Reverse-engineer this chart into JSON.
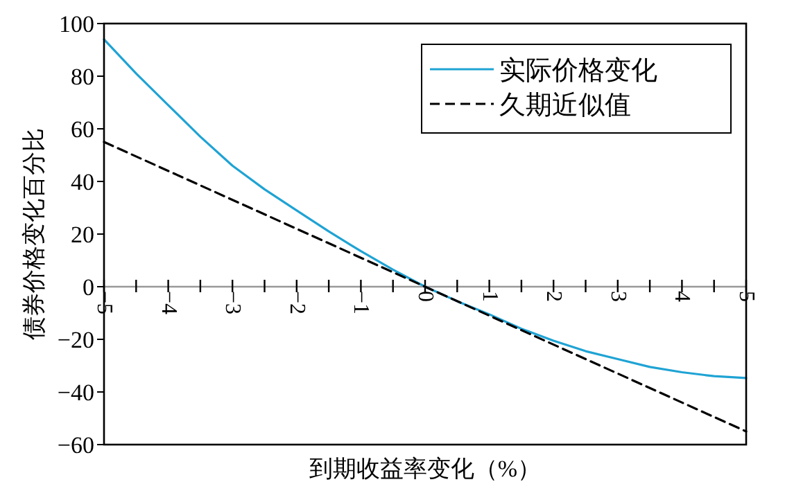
{
  "chart_data": {
    "type": "line",
    "xlabel": "到期收益率变化（%）",
    "ylabel": "债券价格变化百分比",
    "x": [
      -5,
      -4.5,
      -4,
      -3.5,
      -3,
      -2.5,
      -2,
      -1.5,
      -1,
      -0.5,
      0,
      0.5,
      1,
      1.5,
      2,
      2.5,
      3,
      3.5,
      4,
      4.5,
      5
    ],
    "series": [
      {
        "name": "实际价格变化",
        "color": "#1fa3d4",
        "line_style": "solid",
        "values": [
          94,
          81,
          69,
          57,
          46,
          37,
          29,
          21,
          13.5,
          6.5,
          0,
          -5.5,
          -10.5,
          -16,
          -20.5,
          -24.5,
          -27.5,
          -30.5,
          -32.5,
          -34,
          -34.7
        ]
      },
      {
        "name": "久期近似值",
        "color": "#000000",
        "line_style": "dashed",
        "x": [
          -5,
          5
        ],
        "values": [
          55,
          -55
        ]
      }
    ],
    "xlim": [
      -5,
      5
    ],
    "ylim": [
      -60,
      100
    ],
    "xticks": [
      -5,
      {
        "value": -4.5,
        "label": null
      },
      -4,
      {
        "value": -3.5,
        "label": null
      },
      -3,
      {
        "value": -2.5,
        "label": null
      },
      -2,
      {
        "value": -1.5,
        "label": null
      },
      -1,
      {
        "value": -0.5,
        "label": null
      },
      0,
      {
        "value": 0.5,
        "label": null
      },
      1,
      {
        "value": 1.5,
        "label": null
      },
      2,
      {
        "value": 2.5,
        "label": null
      },
      3,
      {
        "value": 3.5,
        "label": null
      },
      4,
      {
        "value": 4.5,
        "label": null
      },
      5
    ],
    "yticks": [
      -60,
      -40,
      -20,
      0,
      20,
      40,
      60,
      80,
      100
    ],
    "legend": "top right",
    "grid": false
  }
}
